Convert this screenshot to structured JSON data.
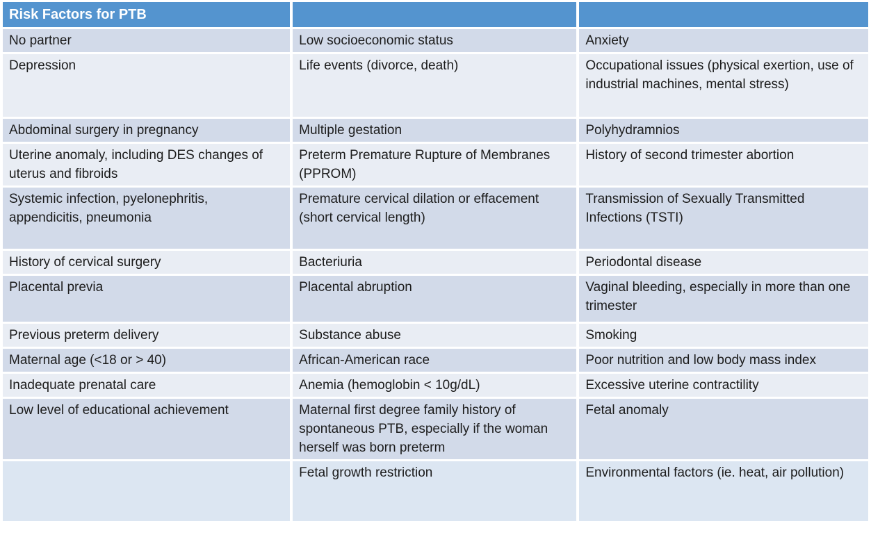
{
  "slide": {
    "title": "Risk Factors for PTB",
    "colors": {
      "header_bg": "#5494cf",
      "header_text": "#ffffff",
      "row_band_dark": "#d2dae9",
      "row_band_light": "#e9edf4",
      "row_last_bg": "#dce6f2",
      "cell_text": "#1c1c1c",
      "grid_gap": "#ffffff"
    }
  },
  "table": {
    "header": [
      "Risk Factors for PTB",
      "",
      ""
    ],
    "rows": [
      [
        "No partner",
        "Low socioeconomic status",
        "Anxiety"
      ],
      [
        "Depression",
        "Life events (divorce, death)",
        "Occupational issues (physical exertion, use of industrial machines, mental stress)"
      ],
      [
        "Abdominal surgery in pregnancy",
        "Multiple gestation",
        "Polyhydramnios"
      ],
      [
        "Uterine anomaly, including DES changes of uterus and fibroids",
        "Preterm Premature Rupture of Membranes (PPROM)",
        "History of second trimester abortion"
      ],
      [
        "Systemic infection, pyelonephritis, appendicitis, pneumonia",
        "Premature cervical dilation or effacement (short cervical length)",
        "Transmission of Sexually Transmitted Infections (TSTI)"
      ],
      [
        "History of cervical surgery",
        "Bacteriuria",
        "Periodontal disease"
      ],
      [
        "Placental previa",
        "Placental abruption",
        "Vaginal bleeding, especially in more than one trimester"
      ],
      [
        "Previous preterm delivery",
        "Substance abuse",
        "Smoking"
      ],
      [
        "Maternal age (<18 or > 40)",
        "African-American race",
        "Poor nutrition and low body mass index"
      ],
      [
        "Inadequate prenatal care",
        "Anemia (hemoglobin < 10g/dL)",
        "Excessive uterine contractility"
      ],
      [
        "Low level of educational achievement",
        "Maternal first degree family history of spontaneous PTB, especially if the woman herself was born preterm",
        "Fetal anomaly"
      ],
      [
        "",
        "Fetal growth restriction",
        "Environmental factors (ie. heat, air pollution)"
      ]
    ]
  }
}
